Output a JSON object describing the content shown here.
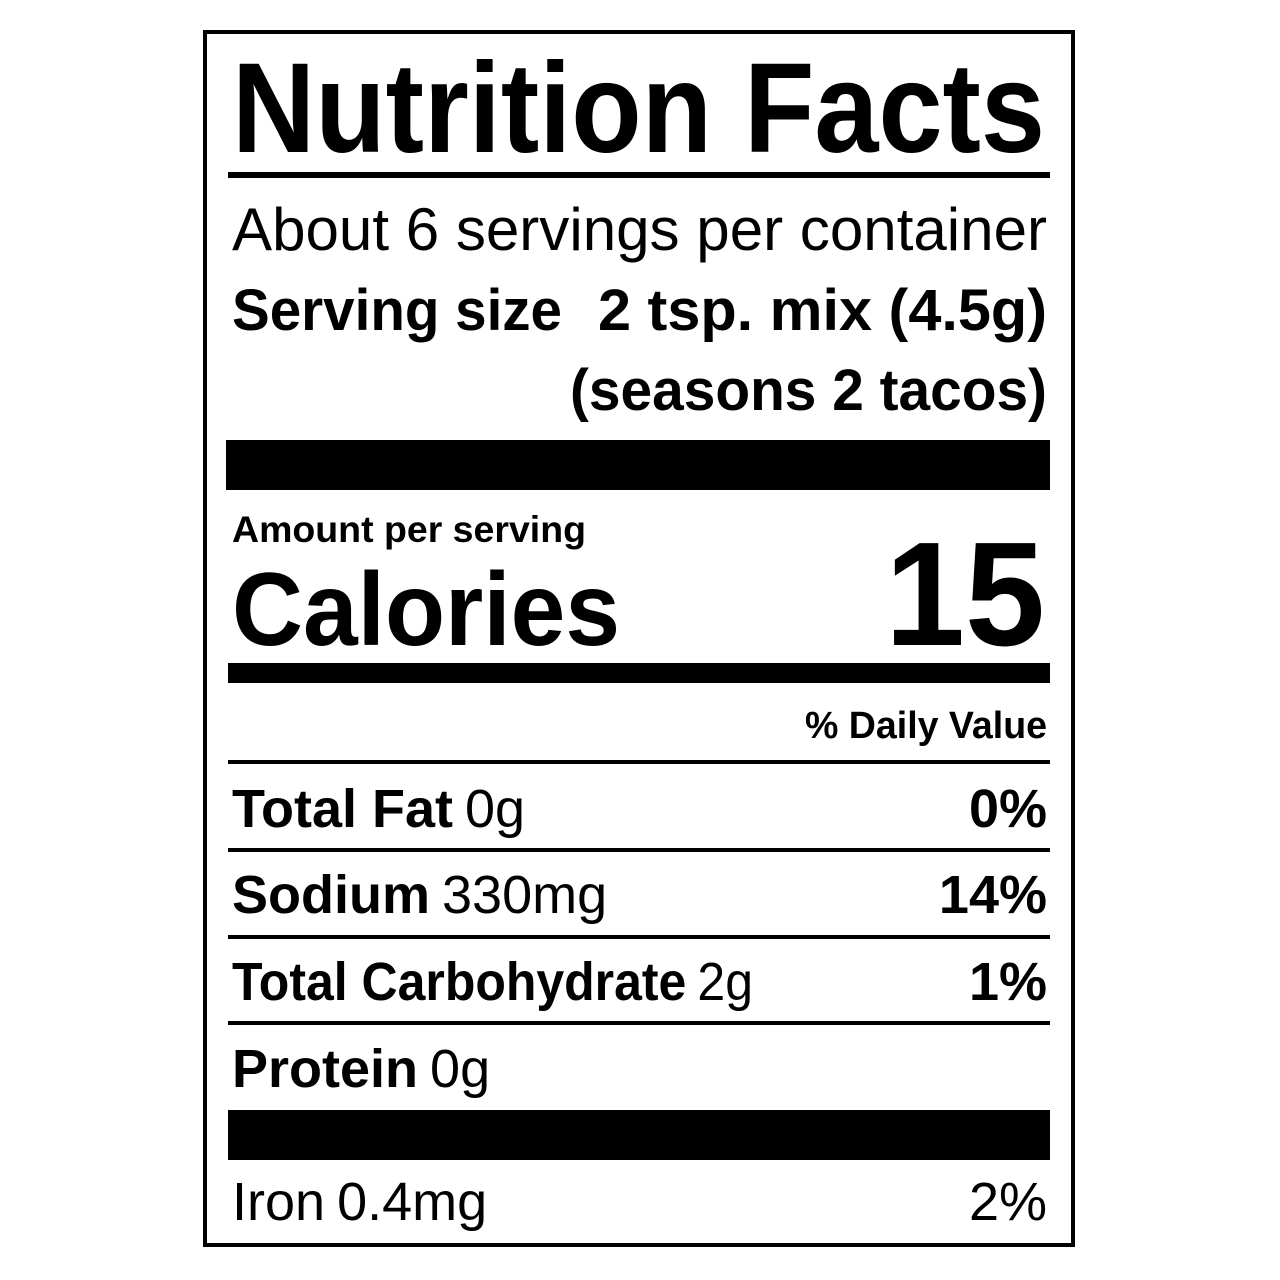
{
  "title": "Nutrition Facts",
  "servings": "About 6 servings per container",
  "serving_size": {
    "label": "Serving size",
    "value": "2 tsp. mix (4.5g)",
    "note": "(seasons 2 tacos)"
  },
  "amount_per_serving": "Amount per serving",
  "calories": {
    "label": "Calories",
    "value": "15"
  },
  "daily_value_header": "% Daily Value",
  "nutrients": [
    {
      "name": "Total Fat",
      "amount": "0g",
      "dv": "0%"
    },
    {
      "name": "Sodium",
      "amount": "330mg",
      "dv": "14%"
    },
    {
      "name": "Total Carbohydrate",
      "amount": "2g",
      "dv": "1%"
    },
    {
      "name": "Protein",
      "amount": "0g"
    }
  ],
  "vitamins": [
    {
      "name": "Iron",
      "amount": "0.4mg",
      "dv": "2%"
    }
  ]
}
